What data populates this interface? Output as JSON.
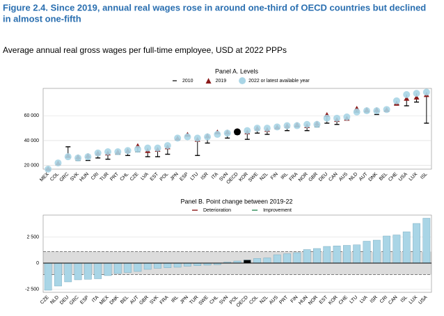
{
  "figure_title": [
    "Figure 2.4. Since 2019, annual real wages rose in around one-third of OECD countries but declined",
    "in almost one-fifth"
  ],
  "subtitle": "Average annual real gross wages per full-time employee, USD at 2022 PPPs",
  "chart_data": [
    {
      "type": "dot",
      "title": "Panel A. Levels",
      "categories": [
        "MEX",
        "COL",
        "GRC",
        "SVK",
        "HUN",
        "CRI",
        "TUR",
        "PRT",
        "CHL",
        "CZE",
        "LVA",
        "EST",
        "POL",
        "JPN",
        "ESP",
        "LTU",
        "ISR",
        "ITA",
        "SVN",
        "OECD",
        "KOR",
        "SWE",
        "NZL",
        "FIN",
        "IRL",
        "FRA",
        "NOR",
        "GBR",
        "DEU",
        "CAN",
        "AUS",
        "NLD",
        "AUT",
        "DNK",
        "BEL",
        "CHE",
        "USA",
        "LUX",
        "ISL"
      ],
      "series": [
        {
          "name": "2010",
          "color": "#000000",
          "marker": "dash",
          "values": [
            17000,
            null,
            35000,
            24000,
            24000,
            26000,
            25000,
            29000,
            28000,
            31000,
            27000,
            27000,
            29000,
            41000,
            44000,
            28000,
            38000,
            46000,
            42000,
            45000,
            41000,
            46000,
            45000,
            50000,
            48000,
            51000,
            48000,
            51000,
            54000,
            53000,
            57000,
            63000,
            63000,
            61000,
            64000,
            69000,
            68000,
            71000,
            54000
          ]
        },
        {
          "name": "2019",
          "color": "#8b1a1a",
          "marker": "triangle",
          "values": [
            17500,
            22000,
            28000,
            27000,
            28000,
            30000,
            30000,
            31000,
            32000,
            36000,
            32000,
            33000,
            35000,
            42000,
            45000,
            41000,
            44000,
            47000,
            47000,
            48000,
            47000,
            50000,
            49000,
            51000,
            52000,
            53000,
            52000,
            54000,
            61000,
            57000,
            58000,
            66000,
            65000,
            65000,
            65000,
            70000,
            74000,
            75000,
            77000
          ]
        },
        {
          "name": "2022 or latest available year",
          "color": "#a9d5e6",
          "marker": "circle",
          "highlight": {
            "OECD": "#000000"
          },
          "values": [
            17000,
            22000,
            27000,
            26000,
            27000,
            30000,
            31000,
            31000,
            32000,
            33000,
            34000,
            34000,
            36000,
            42000,
            43000,
            42000,
            43000,
            45000,
            46000,
            47000,
            48000,
            50000,
            50000,
            51000,
            52000,
            52000,
            53000,
            53000,
            58000,
            58000,
            59000,
            63000,
            64000,
            64000,
            65000,
            72000,
            77000,
            78000,
            79000
          ]
        }
      ],
      "ylim": [
        17000,
        82000
      ],
      "yticks": [
        {
          "value": 20000,
          "label": "20 000"
        },
        {
          "value": 40000,
          "label": "40 000"
        },
        {
          "value": 60000,
          "label": "60 000"
        }
      ],
      "grid": true
    },
    {
      "type": "bar",
      "title": "Panel B. Point change between 2019-22",
      "legend": [
        {
          "name": "Deterioration",
          "color": "#8b1a1a"
        },
        {
          "name": "Improvement",
          "color": "#2e8b57"
        }
      ],
      "categories": [
        "CZE",
        "NLD",
        "DEU",
        "GRC",
        "ESP",
        "ITA",
        "MEX",
        "DNK",
        "BEL",
        "AUT",
        "GBR",
        "SVK",
        "FRA",
        "IRL",
        "JPN",
        "TUR",
        "SWE",
        "CHL",
        "SVN",
        "POL",
        "OECD",
        "COL",
        "NZL",
        "AUS",
        "PRT",
        "FIN",
        "HUN",
        "NOR",
        "EST",
        "KOR",
        "CHE",
        "LTU",
        "LVA",
        "ISR",
        "CRI",
        "CAN",
        "ISL",
        "LUX",
        "USA"
      ],
      "label_colors": [
        "#8b1a1a",
        "#8b1a1a",
        "#8b1a1a",
        "#8b1a1a",
        "#8b1a1a",
        "#8b1a1a",
        "#8b1a1a",
        "#000000",
        "#000000",
        "#000000",
        "#000000",
        "#000000",
        "#000000",
        "#000000",
        "#000000",
        "#000000",
        "#000000",
        "#000000",
        "#000000",
        "#000000",
        "#000000",
        "#000000",
        "#000000",
        "#000000",
        "#000000",
        "#000000",
        "#2e8b57",
        "#2e8b57",
        "#2e8b57",
        "#2e8b57",
        "#2e8b57",
        "#2e8b57",
        "#2e8b57",
        "#2e8b57",
        "#2e8b57",
        "#2e8b57",
        "#2e8b57",
        "#2e8b57",
        "#2e8b57"
      ],
      "values": [
        -2600,
        -2200,
        -1800,
        -1600,
        -1550,
        -1500,
        -1200,
        -1000,
        -900,
        -800,
        -600,
        -500,
        -450,
        -400,
        -300,
        -250,
        -200,
        -150,
        100,
        200,
        300,
        450,
        500,
        800,
        900,
        1000,
        1300,
        1400,
        1600,
        1650,
        1700,
        1750,
        2100,
        2200,
        2600,
        2700,
        3000,
        3800,
        4300
      ],
      "color": "#a9d5e6",
      "highlight": {
        "OECD": "#000000"
      },
      "band": [
        -1100,
        1100
      ],
      "band_color": "#dcdcdc",
      "ylim": [
        -2800,
        4600
      ],
      "yticks": [
        {
          "value": -2500,
          "label": "-2 500"
        },
        0,
        {
          "value": 2500,
          "label": "2 500"
        }
      ],
      "grid": true
    }
  ]
}
